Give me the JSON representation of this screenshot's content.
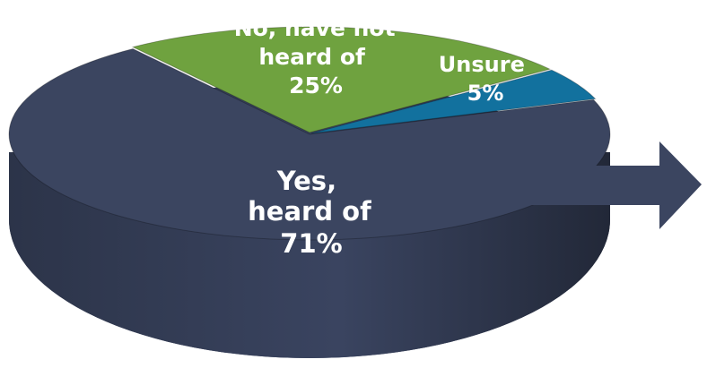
{
  "chart_data": {
    "type": "pie",
    "title": "",
    "style": "3d-tilted",
    "slices": [
      {
        "label_lines": [
          "Yes,",
          "heard of",
          "71%"
        ],
        "value": 71,
        "color": "#3b4560"
      },
      {
        "label_lines": [
          "No, have not",
          "heard of",
          "25%"
        ],
        "value": 25,
        "color": "#6fa23f"
      },
      {
        "label_lines": [
          "Unsure",
          "5%"
        ],
        "value": 5,
        "color": "#12719e"
      }
    ],
    "annotation": "arrow-right"
  }
}
